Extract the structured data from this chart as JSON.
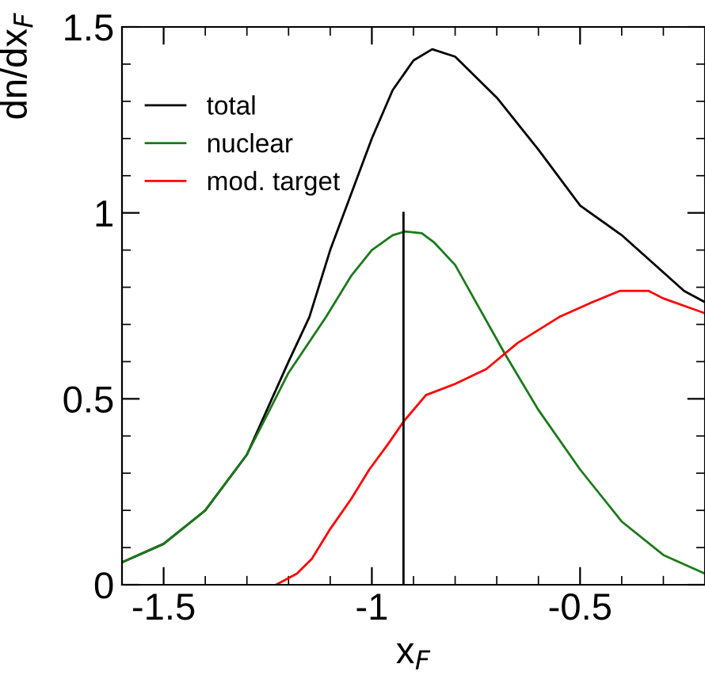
{
  "chart_data": {
    "type": "line",
    "xlabel": "x$_{F}$",
    "ylabel": "dn/dx$_{F}$",
    "xlim": [
      -1.6,
      -0.2
    ],
    "ylim": [
      0,
      1.5
    ],
    "xticks": [
      -1.5,
      -1,
      -0.5
    ],
    "yticks": [
      0,
      0.5,
      1,
      1.5
    ],
    "grid": false,
    "legend": "top left",
    "line_style": "solid",
    "marker": "none",
    "series": [
      {
        "name": "total",
        "color": "#000000",
        "x": [
          -1.6,
          -1.5,
          -1.4,
          -1.3,
          -1.2,
          -1.15,
          -1.1,
          -1.0,
          -0.95,
          -0.9,
          -0.855,
          -0.8,
          -0.7,
          -0.6,
          -0.5,
          -0.4,
          -0.35,
          -0.3,
          -0.25,
          -0.2
        ],
        "values": [
          0.06,
          0.11,
          0.2,
          0.35,
          0.6,
          0.72,
          0.9,
          1.2,
          1.33,
          1.41,
          1.44,
          1.42,
          1.31,
          1.17,
          1.02,
          0.94,
          0.89,
          0.84,
          0.79,
          0.76
        ]
      },
      {
        "name": "nuclear",
        "color": "#1a7a1a",
        "x": [
          -1.6,
          -1.5,
          -1.4,
          -1.3,
          -1.2,
          -1.11,
          -1.05,
          -1.0,
          -0.95,
          -0.92,
          -0.88,
          -0.85,
          -0.8,
          -0.75,
          -0.68,
          -0.6,
          -0.5,
          -0.4,
          -0.3,
          -0.2
        ],
        "values": [
          0.06,
          0.11,
          0.2,
          0.35,
          0.57,
          0.72,
          0.83,
          0.9,
          0.94,
          0.95,
          0.945,
          0.92,
          0.86,
          0.76,
          0.62,
          0.47,
          0.31,
          0.17,
          0.08,
          0.03
        ]
      },
      {
        "name": "mod. target",
        "color": "#ff0000",
        "x": [
          -1.23,
          -1.18,
          -1.144,
          -1.1,
          -1.05,
          -1.006,
          -0.96,
          -0.923,
          -0.87,
          -0.8,
          -0.725,
          -0.65,
          -0.55,
          -0.47,
          -0.405,
          -0.335,
          -0.3,
          -0.25,
          -0.2
        ],
        "values": [
          0,
          0.03,
          0.07,
          0.15,
          0.23,
          0.31,
          0.38,
          0.44,
          0.51,
          0.54,
          0.58,
          0.65,
          0.72,
          0.76,
          0.79,
          0.79,
          0.77,
          0.75,
          0.73
        ]
      },
      {
        "color": "#000000",
        "x": [
          -0.924,
          -0.924
        ],
        "values": [
          0,
          1
        ]
      }
    ]
  }
}
